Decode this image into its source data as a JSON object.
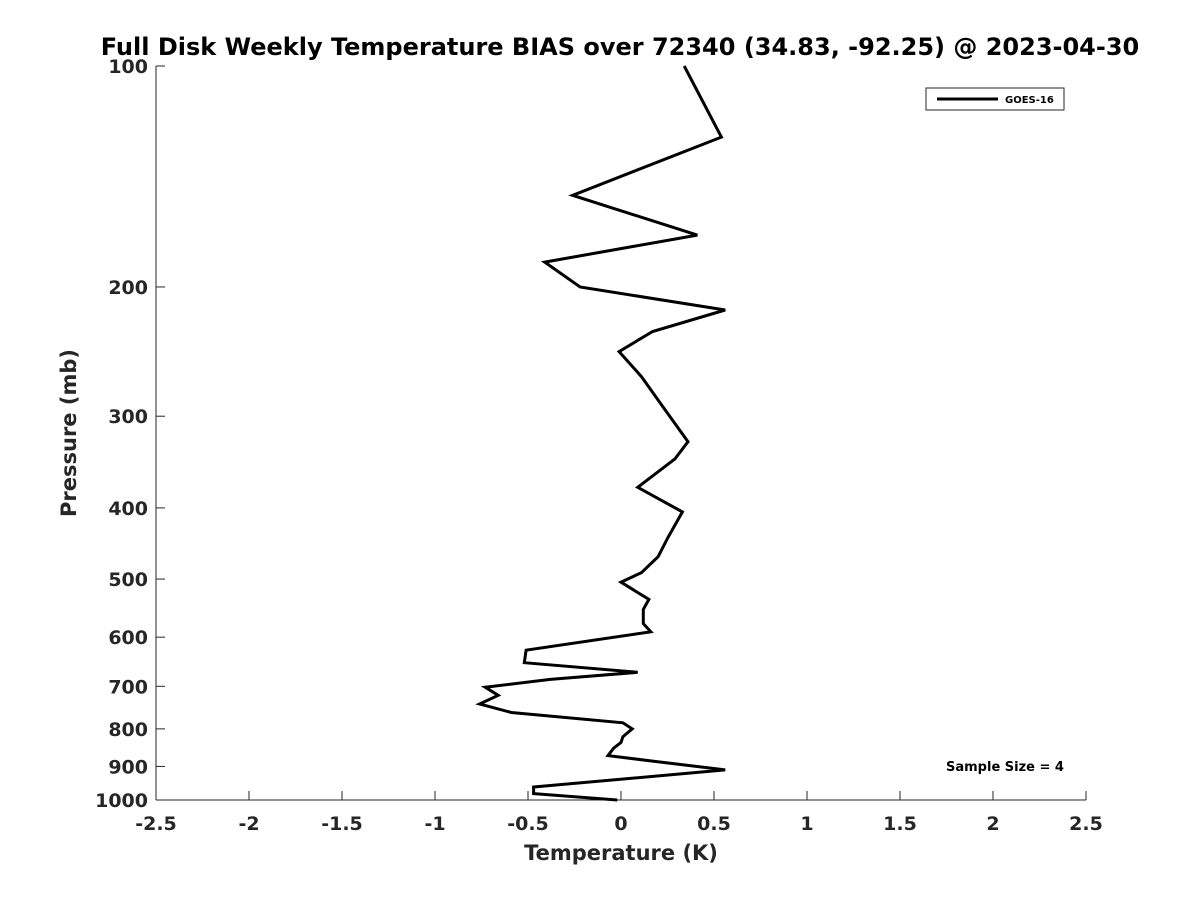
{
  "chart_data": {
    "type": "line",
    "title": "Full Disk Weekly Temperature BIAS over 72340 (34.83, -92.25) @ 2023-04-30",
    "xlabel": "Temperature (K)",
    "ylabel": "Pressure (mb)",
    "xlim": [
      -2.5,
      2.5
    ],
    "ylim": [
      100,
      1000
    ],
    "y_scale": "log",
    "y_reversed": true,
    "x_ticks": [
      -2.5,
      -2,
      -1.5,
      -1,
      -0.5,
      0,
      0.5,
      1,
      1.5,
      2,
      2.5
    ],
    "x_tick_labels": [
      "-2.5",
      "-2",
      "-1.5",
      "-1",
      "-0.5",
      "0",
      "0.5",
      "1",
      "1.5",
      "2",
      "2.5"
    ],
    "y_ticks": [
      100,
      200,
      300,
      400,
      500,
      600,
      700,
      800,
      900,
      1000
    ],
    "y_tick_labels": [
      "100",
      "200",
      "300",
      "400",
      "500",
      "600",
      "700",
      "800",
      "900",
      "1000"
    ],
    "grid": false,
    "legend_position": "top-right",
    "series": [
      {
        "name": "GOES-16",
        "color": "#000000",
        "points": [
          {
            "x": 0.34,
            "y": 100
          },
          {
            "x": 0.54,
            "y": 125
          },
          {
            "x": -0.26,
            "y": 150
          },
          {
            "x": 0.41,
            "y": 170
          },
          {
            "x": -0.41,
            "y": 185
          },
          {
            "x": -0.22,
            "y": 200
          },
          {
            "x": 0.56,
            "y": 215
          },
          {
            "x": 0.17,
            "y": 230
          },
          {
            "x": -0.01,
            "y": 245
          },
          {
            "x": 0.11,
            "y": 265
          },
          {
            "x": 0.22,
            "y": 290
          },
          {
            "x": 0.36,
            "y": 325
          },
          {
            "x": 0.29,
            "y": 343
          },
          {
            "x": 0.09,
            "y": 375
          },
          {
            "x": 0.33,
            "y": 405
          },
          {
            "x": 0.25,
            "y": 440
          },
          {
            "x": 0.2,
            "y": 466
          },
          {
            "x": 0.11,
            "y": 490
          },
          {
            "x": 0.0,
            "y": 505
          },
          {
            "x": 0.15,
            "y": 533
          },
          {
            "x": 0.12,
            "y": 550
          },
          {
            "x": 0.12,
            "y": 575
          },
          {
            "x": 0.16,
            "y": 590
          },
          {
            "x": -0.51,
            "y": 625
          },
          {
            "x": -0.52,
            "y": 650
          },
          {
            "x": 0.09,
            "y": 670
          },
          {
            "x": -0.38,
            "y": 685
          },
          {
            "x": -0.73,
            "y": 702
          },
          {
            "x": -0.66,
            "y": 720
          },
          {
            "x": -0.76,
            "y": 740
          },
          {
            "x": -0.59,
            "y": 760
          },
          {
            "x": 0.01,
            "y": 785
          },
          {
            "x": 0.06,
            "y": 800
          },
          {
            "x": 0.01,
            "y": 820
          },
          {
            "x": 0.0,
            "y": 835
          },
          {
            "x": -0.04,
            "y": 850
          },
          {
            "x": -0.07,
            "y": 870
          },
          {
            "x": 0.17,
            "y": 885
          },
          {
            "x": 0.56,
            "y": 910
          },
          {
            "x": -0.47,
            "y": 960
          },
          {
            "x": -0.47,
            "y": 980
          },
          {
            "x": -0.02,
            "y": 1000
          }
        ]
      }
    ],
    "annotations": [
      {
        "text": "Sample Size = 4"
      }
    ]
  }
}
